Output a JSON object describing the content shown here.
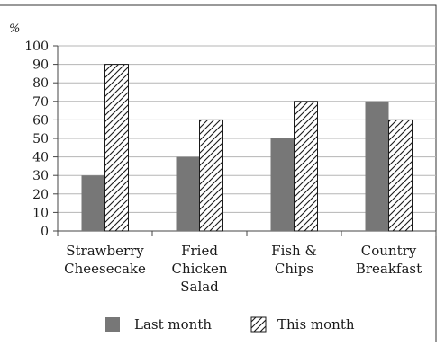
{
  "chart_data": {
    "type": "bar",
    "ylabel": "%",
    "ylim": [
      0,
      100
    ],
    "ytick_step": 10,
    "categories": [
      [
        "Strawberry",
        "Cheesecake"
      ],
      [
        "Fried",
        "Chicken",
        "Salad"
      ],
      [
        "Fish &",
        "Chips"
      ],
      [
        "Country",
        "Breakfast"
      ]
    ],
    "series": [
      {
        "name": "Last month",
        "values": [
          30,
          40,
          50,
          70
        ],
        "color": "#777777",
        "pattern": "solid"
      },
      {
        "name": "This month",
        "values": [
          90,
          60,
          70,
          60
        ],
        "color": "#1a1a1a",
        "pattern": "hatch"
      }
    ],
    "grid": true,
    "legend": "bottom"
  }
}
